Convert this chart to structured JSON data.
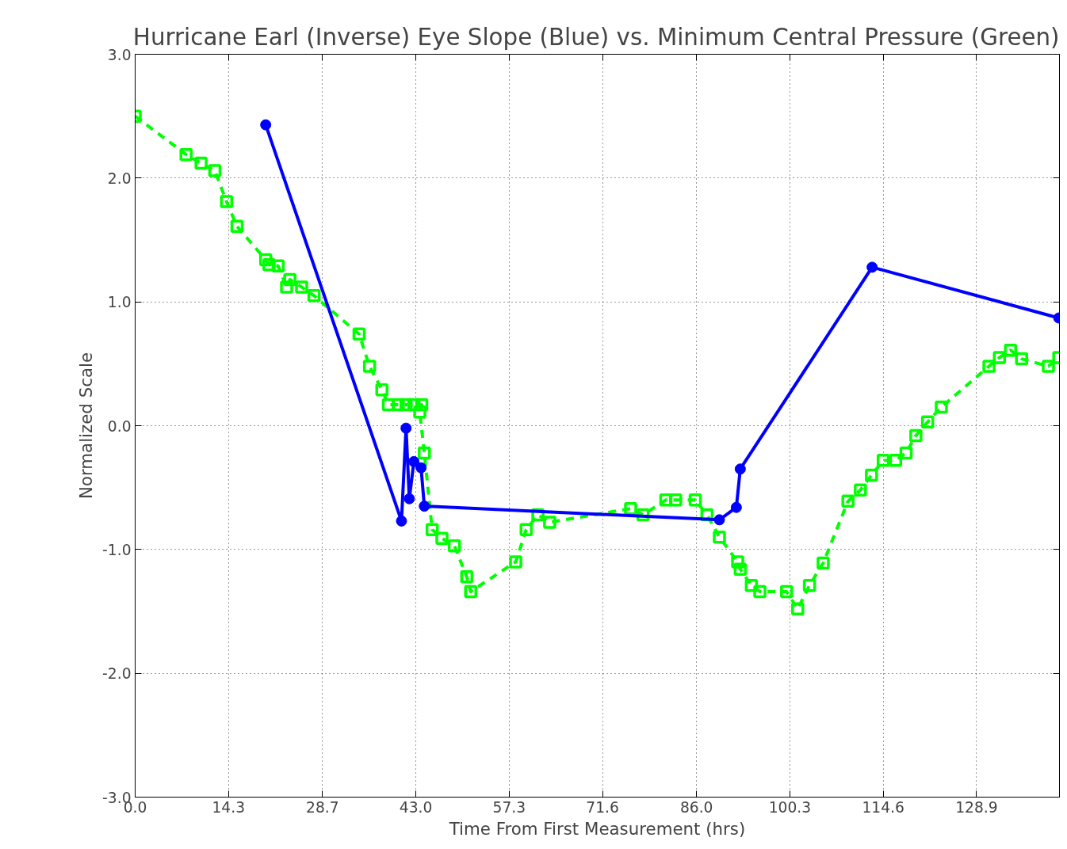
{
  "chart_data": {
    "type": "line",
    "title": "Hurricane Earl (Inverse) Eye Slope (Blue) vs. Minimum Central Pressure (Green)",
    "xlabel": "Time From First Measurement (hrs)",
    "ylabel": "Normalized Scale",
    "xlim": [
      0,
      141.6
    ],
    "ylim": [
      -3.0,
      3.0
    ],
    "xticks": [
      {
        "value": 0,
        "label": "0.0"
      },
      14.3,
      28.7,
      {
        "value": 43,
        "label": "43.0"
      },
      57.3,
      71.6,
      {
        "value": 86,
        "label": "86.0"
      },
      100.3,
      114.6,
      128.9
    ],
    "yticks": [
      {
        "value": -3,
        "label": "-3.0"
      },
      {
        "value": -2,
        "label": "-2.0"
      },
      {
        "value": -1,
        "label": "-1.0"
      },
      {
        "value": 0,
        "label": "0.0"
      },
      {
        "value": 1,
        "label": "1.0"
      },
      {
        "value": 2,
        "label": "2.0"
      },
      {
        "value": 3,
        "label": "3.0"
      }
    ],
    "grid": true,
    "series": [
      {
        "color": "#00ff00",
        "marker": "square",
        "line_style": "dashed",
        "x": [
          0,
          7.8,
          10.1,
          12.2,
          14.0,
          15.6,
          20.0,
          20.5,
          21.9,
          23.2,
          23.7,
          25.5,
          27.4,
          34.3,
          35.9,
          37.8,
          38.8,
          40.3,
          41.5,
          42.7,
          43.9,
          43.6,
          44.3,
          45.5,
          47.0,
          48.9,
          50.8,
          51.4,
          58.3,
          59.9,
          61.7,
          63.5,
          75.9,
          77.8,
          81.3,
          82.8,
          85.8,
          87.6,
          89.5,
          92.3,
          92.7,
          94.4,
          95.7,
          99.8,
          101.5,
          103.3,
          105.4,
          109.2,
          111.1,
          112.8,
          114.6,
          116.5,
          118.1,
          119.6,
          121.4,
          123.5,
          130.8,
          132.4,
          134.1,
          135.8,
          139.9,
          141.5
        ],
        "values": [
          2.5,
          2.19,
          2.12,
          2.06,
          1.81,
          1.61,
          1.34,
          1.3,
          1.29,
          1.12,
          1.18,
          1.12,
          1.05,
          0.74,
          0.48,
          0.29,
          0.17,
          0.17,
          0.17,
          0.17,
          0.17,
          0.11,
          -0.22,
          -0.84,
          -0.91,
          -0.97,
          -1.22,
          -1.34,
          -1.1,
          -0.84,
          -0.72,
          -0.78,
          -0.67,
          -0.72,
          -0.6,
          -0.6,
          -0.6,
          -0.72,
          -0.9,
          -1.1,
          -1.16,
          -1.29,
          -1.34,
          -1.34,
          -1.48,
          -1.29,
          -1.11,
          -0.61,
          -0.52,
          -0.4,
          -0.28,
          -0.28,
          -0.22,
          -0.08,
          0.03,
          0.15,
          0.48,
          0.55,
          0.61,
          0.54,
          0.48,
          0.55
        ]
      },
      {
        "color": "#0000ff",
        "marker": "circle",
        "line_style": "solid",
        "x": [
          20.0,
          40.8,
          41.5,
          42.0,
          42.7,
          43.8,
          44.3,
          89.5,
          92.1,
          92.7,
          112.9,
          141.5
        ],
        "values": [
          2.43,
          -0.77,
          -0.02,
          -0.59,
          -0.29,
          -0.34,
          -0.65,
          -0.76,
          -0.66,
          -0.35,
          1.28,
          0.87
        ]
      }
    ]
  }
}
